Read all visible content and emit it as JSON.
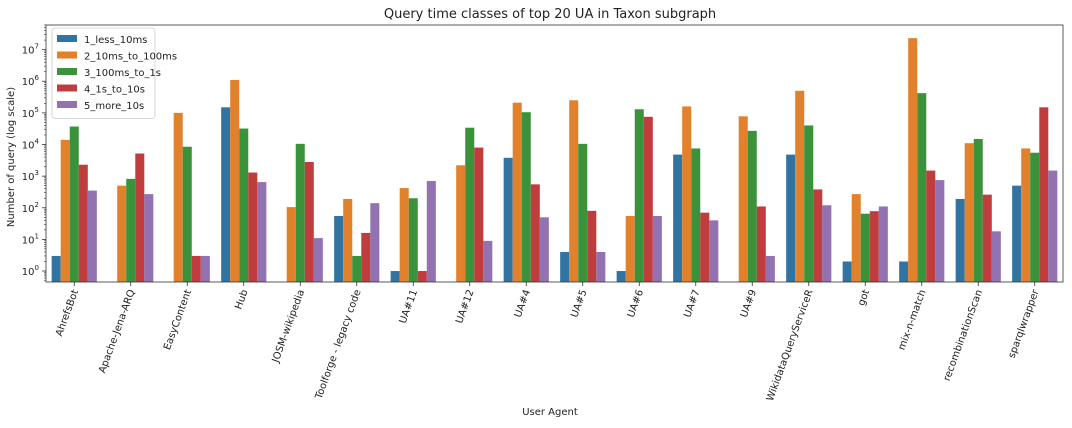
{
  "chart_data": {
    "type": "bar",
    "title": "Query time classes of top 20 UA in Taxon subgraph",
    "xlabel": "User Agent",
    "ylabel": "Number of query (log scale)",
    "yscale": "log",
    "ylim": [
      0.45,
      60000000
    ],
    "yticks": [
      {
        "value": 1,
        "base": "10",
        "exp": "0"
      },
      {
        "value": 10,
        "base": "10",
        "exp": "1"
      },
      {
        "value": 100,
        "base": "10",
        "exp": "2"
      },
      {
        "value": 1000,
        "base": "10",
        "exp": "3"
      },
      {
        "value": 10000,
        "base": "10",
        "exp": "4"
      },
      {
        "value": 100000,
        "base": "10",
        "exp": "5"
      },
      {
        "value": 1000000,
        "base": "10",
        "exp": "6"
      },
      {
        "value": 10000000,
        "base": "10",
        "exp": "7"
      }
    ],
    "grid": false,
    "legend_position": "top-left",
    "categories": [
      "AhrefsBot",
      "Apache-Jena-ARQ",
      "EasyContent",
      "Hub",
      "JOSM-wikipedia",
      "Toolforge - legacy code",
      "UA#11",
      "UA#12",
      "UA#4",
      "UA#5",
      "UA#6",
      "UA#7",
      "UA#9",
      "WikidataQueryServiceR",
      "got",
      "mix-n-match",
      "recombinationScan",
      "sparqlwrapper"
    ],
    "series": [
      {
        "name": "1_less_10ms",
        "color": "#3274a1",
        "values": [
          3,
          null,
          null,
          150000,
          null,
          55,
          1,
          null,
          3800,
          4,
          1,
          4800,
          null,
          4800,
          2,
          2,
          190,
          500
        ]
      },
      {
        "name": "2_10ms_to_100ms",
        "color": "#e1812c",
        "values": [
          14000,
          500,
          100000,
          1100000,
          105,
          190,
          420,
          2200,
          210000,
          250000,
          55,
          160000,
          78000,
          500000,
          270,
          23000000,
          11000,
          7500
        ]
      },
      {
        "name": "3_100ms_to_1s",
        "color": "#3a923a",
        "values": [
          37000,
          820,
          8500,
          32000,
          10500,
          3,
          200,
          34000,
          105000,
          10500,
          130000,
          7500,
          27000,
          40000,
          65,
          420000,
          15000,
          5500
        ]
      },
      {
        "name": "4_1s_to_10s",
        "color": "#c03d3e",
        "values": [
          2300,
          5200,
          3,
          1300,
          2800,
          16,
          1,
          8000,
          550,
          80,
          75000,
          70,
          110,
          380,
          78,
          1500,
          260,
          150000
        ]
      },
      {
        "name": "5_more_10s",
        "color": "#9372b2",
        "values": [
          350,
          270,
          3,
          650,
          11,
          140,
          700,
          9,
          50,
          4,
          55,
          40,
          3,
          120,
          110,
          750,
          18,
          1500
        ]
      }
    ]
  }
}
